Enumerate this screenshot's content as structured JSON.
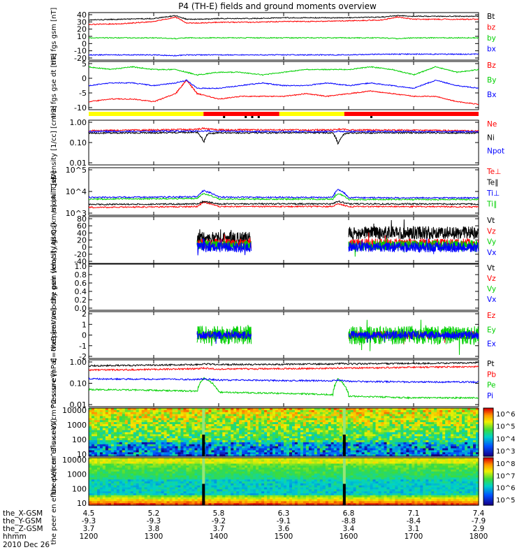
{
  "title": "P4 (TH-E) fields and ground moments overview",
  "date_label": "2010 Dec 26",
  "ephemeris": {
    "rows": [
      {
        "label": "the_X-GSM",
        "values": [
          "4.5",
          "5.2",
          "5.8",
          "6.3",
          "6.8",
          "7.1",
          "7.4"
        ]
      },
      {
        "label": "the_Y-GSM",
        "values": [
          "-9.3",
          "-9.3",
          "-9.2",
          "-9.1",
          "-8.8",
          "-8.4",
          "-7.9"
        ]
      },
      {
        "label": "the_Z-GSM",
        "values": [
          "3.7",
          "3.8",
          "3.7",
          "3.6",
          "3.4",
          "3.1",
          "2.9"
        ]
      },
      {
        "label": "hhmm",
        "values": [
          "1200",
          "1300",
          "1400",
          "1500",
          "1600",
          "1700",
          "1800"
        ]
      }
    ]
  },
  "colors": {
    "black": "#000000",
    "red": "#ff0000",
    "green": "#00d000",
    "blue": "#0000ff",
    "yellow": "#ffff00"
  },
  "chart_data": [
    {
      "id": "fgs-gsm",
      "type": "line",
      "ylabel": "the fgs gsm [nT]",
      "yticks": [
        "40",
        "30",
        "20",
        "10",
        "0",
        "-10",
        "-20"
      ],
      "ylim": [
        -22,
        42
      ],
      "x": [
        1200,
        1230,
        1300,
        1320,
        1330,
        1345,
        1400,
        1430,
        1500,
        1530,
        1600,
        1630,
        1645,
        1700,
        1730,
        1800
      ],
      "series": [
        {
          "name": "Bt",
          "color": "red-black",
          "values": [
            32,
            33,
            34,
            38,
            33,
            33,
            34,
            34,
            35,
            35,
            35,
            36,
            38,
            37,
            37,
            37
          ]
        },
        {
          "name": "bz",
          "values": [
            26,
            27,
            30,
            36,
            28,
            28,
            29,
            29,
            30,
            30,
            31,
            32,
            36,
            33,
            33,
            33
          ]
        },
        {
          "name": "by",
          "values": [
            8,
            8,
            8,
            7,
            8,
            8,
            8,
            8,
            8,
            8,
            8,
            8,
            7,
            8,
            8,
            8
          ]
        },
        {
          "name": "bx",
          "values": [
            -15,
            -15,
            -15,
            -16,
            -15,
            -15,
            -15,
            -15,
            -15,
            -15,
            -15,
            -14,
            -14,
            -14,
            -14,
            -14
          ]
        }
      ]
    },
    {
      "id": "fgs-gse-dt",
      "type": "line",
      "ylabel": "the fgs gse dt [nT]",
      "yticks": [
        "5",
        "0",
        "-5",
        "-10"
      ],
      "ylim": [
        -12,
        6
      ],
      "x": [
        1200,
        1220,
        1240,
        1300,
        1320,
        1330,
        1340,
        1400,
        1420,
        1440,
        1500,
        1520,
        1540,
        1600,
        1620,
        1640,
        1700,
        1720,
        1740,
        1800
      ],
      "series": [
        {
          "name": "Bz",
          "values": [
            -9,
            -8,
            -8,
            -9,
            -6,
            -1,
            -6,
            -8,
            -7,
            -7,
            -7,
            -6,
            -7,
            -6,
            -5,
            -6,
            -7,
            -7,
            -9,
            -10
          ]
        },
        {
          "name": "By",
          "values": [
            4,
            3,
            4,
            3,
            3,
            2,
            1,
            2,
            2,
            1,
            2,
            3,
            3,
            3,
            4,
            3,
            1,
            4,
            2,
            3
          ]
        },
        {
          "name": "Bx",
          "values": [
            -3,
            -2,
            -2,
            -3,
            -2,
            -1,
            -4,
            -4,
            -3,
            -2,
            -3,
            -3,
            -2,
            -3,
            -2,
            -3,
            -4,
            -1,
            -3,
            -4
          ]
        }
      ]
    },
    {
      "id": "density",
      "type": "line",
      "scale": "log",
      "ylabel": "Density [1/cc] [cm-3]",
      "yticks": [
        "1.00",
        "0.10",
        "0.01"
      ],
      "ylim": [
        0.01,
        1.3
      ],
      "x": [
        1200,
        1300,
        1340,
        1346,
        1350,
        1400,
        1500,
        1545,
        1550,
        1556,
        1600,
        1700,
        1800
      ],
      "series": [
        {
          "name": "Ne",
          "values": [
            0.42,
            0.45,
            0.48,
            0.55,
            0.5,
            0.46,
            0.45,
            0.45,
            0.5,
            0.48,
            0.45,
            0.44,
            0.4
          ]
        },
        {
          "name": "Ni",
          "values": [
            0.32,
            0.33,
            0.35,
            0.12,
            0.3,
            0.33,
            0.33,
            0.33,
            0.1,
            0.3,
            0.32,
            0.33,
            0.32
          ]
        },
        {
          "name": "Npot",
          "values": [
            0.38,
            0.39,
            0.4,
            0.4,
            0.4,
            0.39,
            0.38,
            0.38,
            0.38,
            0.38,
            0.38,
            0.38,
            0.37
          ]
        }
      ]
    },
    {
      "id": "temperature",
      "type": "line",
      "scale": "log",
      "ylabel": "mom T [eV]",
      "yticks": [
        "10^5",
        "10^4",
        "10^3"
      ],
      "ylim": [
        400,
        100000
      ],
      "x": [
        1200,
        1300,
        1340,
        1346,
        1400,
        1500,
        1545,
        1550,
        1600,
        1700,
        1800
      ],
      "series": [
        {
          "name": "Te⊥",
          "values": [
            1000,
            1050,
            1100,
            1800,
            1100,
            1100,
            1100,
            1500,
            1100,
            1100,
            1050
          ]
        },
        {
          "name": "Te∥",
          "values": [
            1400,
            1450,
            1500,
            2000,
            1500,
            1500,
            1500,
            2000,
            1500,
            1500,
            1450
          ]
        },
        {
          "name": "Ti⊥",
          "values": [
            3200,
            3300,
            3400,
            7000,
            3300,
            3200,
            3200,
            8000,
            3100,
            3000,
            3000
          ]
        },
        {
          "name": "Ti∥",
          "values": [
            2600,
            2700,
            2800,
            5000,
            2600,
            2600,
            2600,
            5000,
            2500,
            2500,
            2500
          ]
        }
      ]
    },
    {
      "id": "peir-velocity",
      "type": "line",
      "ylabel": "the peir velocity gsm [km/s] (All Qs)",
      "yticks": [
        "80",
        "60",
        "40",
        "20",
        "0",
        "-20",
        "-40"
      ],
      "ylim": [
        -45,
        85
      ],
      "segments": [
        [
          1340,
          1430
        ],
        [
          1600,
          1800
        ]
      ],
      "series": [
        {
          "name": "Vt",
          "values": [
            25,
            40
          ]
        },
        {
          "name": "Vz",
          "values": [
            10,
            10
          ]
        },
        {
          "name": "Vy",
          "values": [
            5,
            5
          ]
        },
        {
          "name": "Vx",
          "values": [
            0,
            0
          ]
        }
      ]
    },
    {
      "id": "peer-velocity",
      "type": "line",
      "ylabel": "the peer velocity gsm [km/s] (All Qs)",
      "yticks": [
        "1.0",
        "0.8",
        "0.6",
        "0.4",
        "0.2",
        "0.0"
      ],
      "ylim": [
        0,
        1
      ],
      "series": [
        {
          "name": "Vt",
          "values": []
        },
        {
          "name": "Vz",
          "values": []
        },
        {
          "name": "Vy",
          "values": []
        },
        {
          "name": "Vx",
          "values": []
        }
      ]
    },
    {
      "id": "e-field",
      "type": "line",
      "ylabel": "E=-VxB [mV/m]",
      "yticks": [
        "2",
        "1",
        "0",
        "-1",
        "-2"
      ],
      "ylim": [
        -2.3,
        2.3
      ],
      "segments": [
        [
          1340,
          1430
        ],
        [
          1600,
          1800
        ]
      ],
      "series": [
        {
          "name": "Ez",
          "values": [
            0,
            0
          ]
        },
        {
          "name": "Ey",
          "values": [
            0,
            0
          ]
        },
        {
          "name": "Ex",
          "values": [
            0,
            0
          ]
        }
      ]
    },
    {
      "id": "pressure",
      "type": "line",
      "scale": "log",
      "ylabel": "Pressure [nPa]",
      "yticks": [
        "1.00",
        "0.10",
        "0.01"
      ],
      "ylim": [
        0.01,
        1.3
      ],
      "x": [
        1200,
        1300,
        1340,
        1346,
        1400,
        1500,
        1545,
        1550,
        1600,
        1700,
        1800
      ],
      "series": [
        {
          "name": "Pt",
          "values": [
            0.7,
            0.75,
            0.8,
            0.85,
            0.8,
            0.82,
            0.85,
            0.9,
            0.85,
            0.9,
            0.95
          ]
        },
        {
          "name": "Pb",
          "values": [
            0.45,
            0.48,
            0.52,
            0.55,
            0.5,
            0.52,
            0.54,
            0.56,
            0.55,
            0.6,
            0.65
          ]
        },
        {
          "name": "Pe",
          "values": [
            0.06,
            0.055,
            0.05,
            0.2,
            0.045,
            0.04,
            0.035,
            0.18,
            0.03,
            0.025,
            0.025
          ]
        },
        {
          "name": "Pi",
          "values": [
            0.18,
            0.175,
            0.17,
            0.18,
            0.16,
            0.15,
            0.15,
            0.16,
            0.14,
            0.13,
            0.13
          ]
        }
      ]
    },
    {
      "id": "peir-en-eflux",
      "type": "heatmap",
      "ylabel": "the peir en eflux eV/(cm^2-s-sr-eV)",
      "yticks": [
        "10000",
        "1000",
        "100",
        "10"
      ],
      "colorbar_ticks": [
        "10^6",
        "10^5",
        "10^4",
        "10^3"
      ]
    },
    {
      "id": "peer-en-eflux",
      "type": "heatmap",
      "ylabel": "the peer en eflux eV/(cm^2-s-sr-eV)",
      "yticks": [
        "10000",
        "1000",
        "100",
        "10"
      ],
      "colorbar_ticks": [
        "10^8",
        "10^7",
        "10^6",
        "10^5"
      ]
    }
  ],
  "mode_bar": {
    "segments": [
      {
        "from": 1200,
        "to": 1346,
        "color": "yellow"
      },
      {
        "from": 1346,
        "to": 1456,
        "color": "red"
      },
      {
        "from": 1456,
        "to": 1556,
        "color": "yellow"
      },
      {
        "from": 1556,
        "to": 1800,
        "color": "red"
      }
    ]
  },
  "legends": {
    "fgs-gsm": [
      [
        "Bt",
        "black"
      ],
      [
        "bz",
        "red"
      ],
      [
        "by",
        "green"
      ],
      [
        "bx",
        "blue"
      ]
    ],
    "fgs-gse-dt": [
      [
        "Bz",
        "red"
      ],
      [
        "By",
        "green"
      ],
      [
        "Bx",
        "blue"
      ]
    ],
    "density": [
      [
        "Ne",
        "red"
      ],
      [
        "Ni",
        "black"
      ],
      [
        "Npot",
        "blue"
      ]
    ],
    "temperature": [
      [
        "Te⊥",
        "red"
      ],
      [
        "Te∥",
        "black"
      ],
      [
        "Ti⊥",
        "blue"
      ],
      [
        "Ti∥",
        "green"
      ]
    ],
    "peir-velocity": [
      [
        "Vt",
        "black"
      ],
      [
        "Vz",
        "red"
      ],
      [
        "Vy",
        "green"
      ],
      [
        "Vx",
        "blue"
      ]
    ],
    "peer-velocity": [
      [
        "Vt",
        "black"
      ],
      [
        "Vz",
        "red"
      ],
      [
        "Vy",
        "green"
      ],
      [
        "Vx",
        "blue"
      ]
    ],
    "e-field": [
      [
        "Ez",
        "red"
      ],
      [
        "Ey",
        "green"
      ],
      [
        "Ex",
        "blue"
      ]
    ],
    "pressure": [
      [
        "Pt",
        "black"
      ],
      [
        "Pb",
        "red"
      ],
      [
        "Pe",
        "green"
      ],
      [
        "Pi",
        "blue"
      ]
    ]
  }
}
